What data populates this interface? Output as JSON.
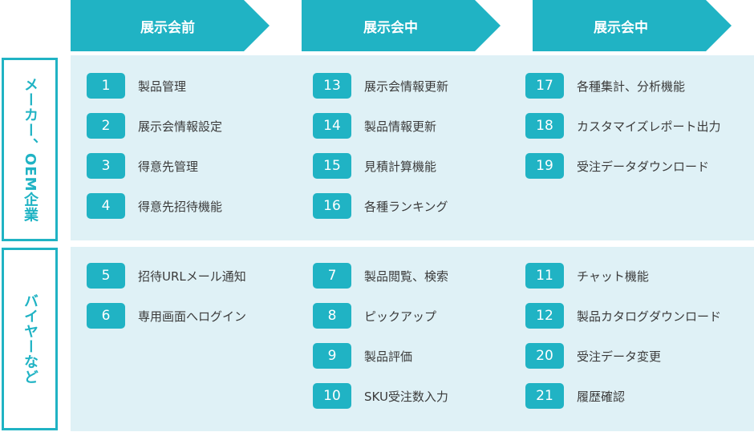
{
  "phases": [
    "展示会前",
    "展示会中",
    "展示会中"
  ],
  "rows": [
    {
      "label": "メーカー、OEM企業",
      "columns": [
        [
          {
            "num": "1",
            "text": "製品管理"
          },
          {
            "num": "2",
            "text": "展示会情報設定"
          },
          {
            "num": "3",
            "text": "得意先管理"
          },
          {
            "num": "4",
            "text": "得意先招待機能"
          }
        ],
        [
          {
            "num": "13",
            "text": "展示会情報更新"
          },
          {
            "num": "14",
            "text": "製品情報更新"
          },
          {
            "num": "15",
            "text": "見積計算機能"
          },
          {
            "num": "16",
            "text": "各種ランキング"
          }
        ],
        [
          {
            "num": "17",
            "text": "各種集計、分析機能"
          },
          {
            "num": "18",
            "text": "カスタマイズレポート出力"
          },
          {
            "num": "19",
            "text": "受注データダウンロード"
          }
        ]
      ]
    },
    {
      "label": "バイヤーなど",
      "columns": [
        [
          {
            "num": "5",
            "text": "招待URLメール通知"
          },
          {
            "num": "6",
            "text": "専用画面へログイン"
          }
        ],
        [
          {
            "num": "7",
            "text": "製品閲覧、検索"
          },
          {
            "num": "8",
            "text": "ピックアップ"
          },
          {
            "num": "9",
            "text": "製品評価"
          },
          {
            "num": "10",
            "text": "SKU受注数入力"
          }
        ],
        [
          {
            "num": "11",
            "text": "チャット機能"
          },
          {
            "num": "12",
            "text": "製品カタログダウンロード"
          },
          {
            "num": "20",
            "text": "受注データ変更"
          },
          {
            "num": "21",
            "text": "履歴確認"
          }
        ]
      ]
    }
  ],
  "colors": {
    "accent": "#20b3c4",
    "panel": "#dff1f6",
    "text": "#3b3b3b"
  }
}
